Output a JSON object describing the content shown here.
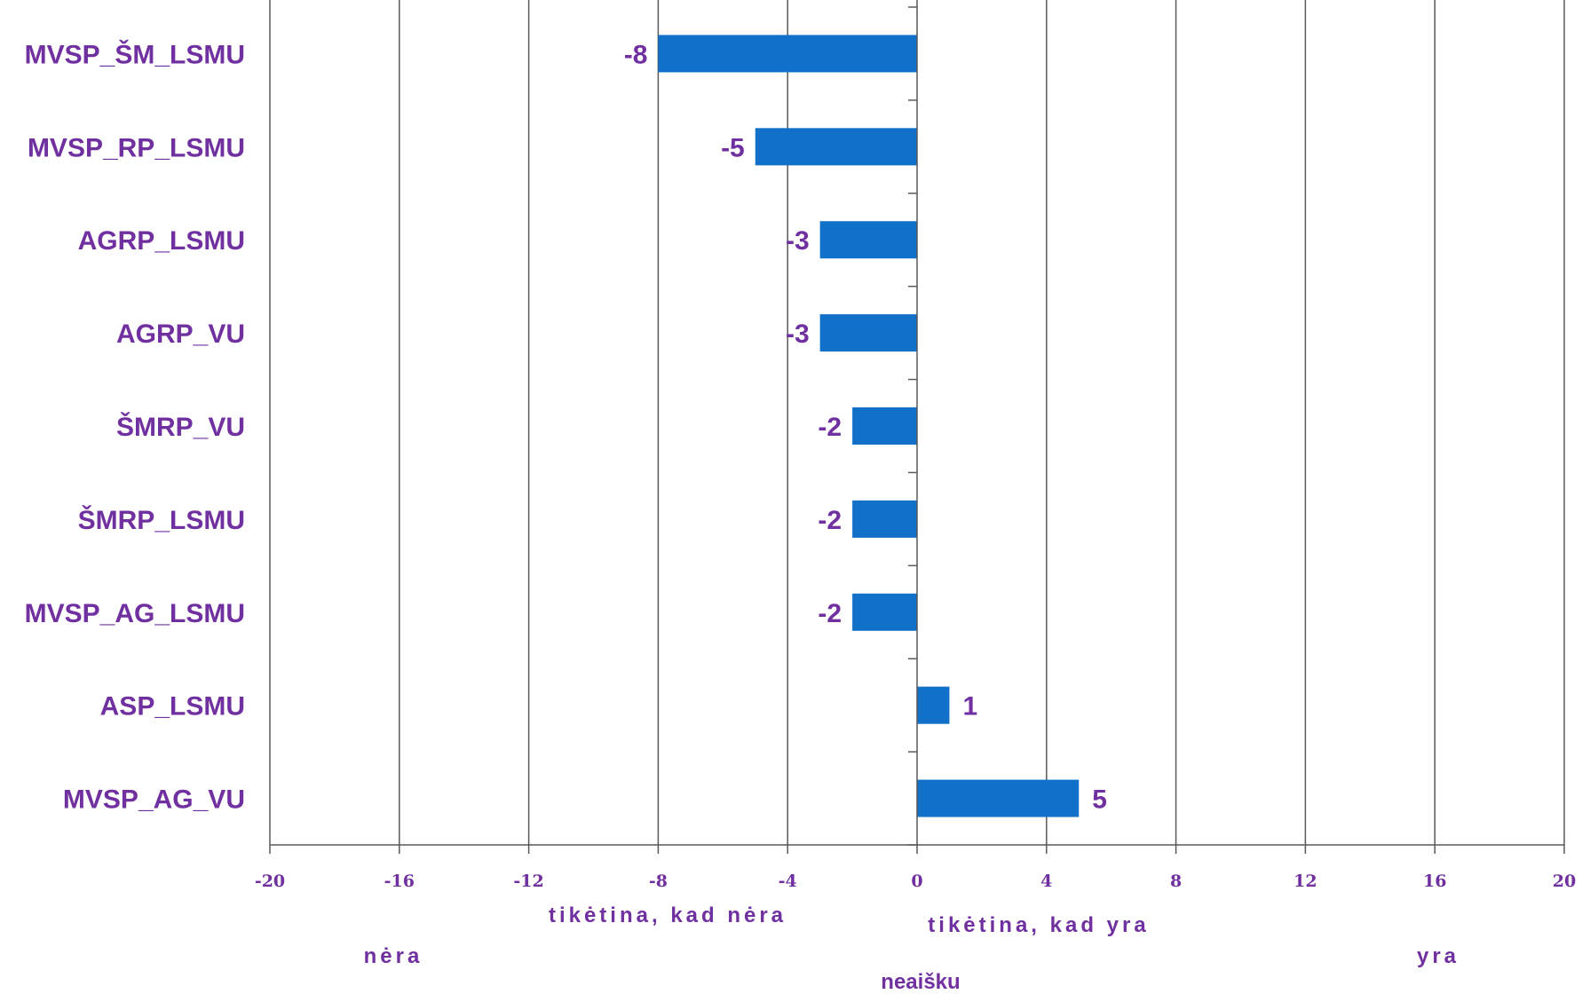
{
  "chart_data": {
    "type": "bar",
    "orientation": "horizontal",
    "categories": [
      "MVSP_ŠM_LSMU",
      "MVSP_RP_LSMU",
      "AGRP_LSMU",
      "AGRP_VU",
      "ŠMRP_VU",
      "ŠMRP_LSMU",
      "MVSP_AG_LSMU",
      "ASP_LSMU",
      "MVSP_AG_VU"
    ],
    "values": [
      -8,
      -5,
      -3,
      -3,
      -2,
      -2,
      -2,
      1,
      5
    ],
    "value_labels": [
      "-8",
      "-5",
      "-3",
      "-3",
      "-2",
      "-2",
      "-2",
      "1",
      "5"
    ],
    "xlim": [
      -20,
      20
    ],
    "x_ticks": [
      -20,
      -16,
      -12,
      -8,
      -4,
      0,
      4,
      8,
      12,
      16,
      20
    ],
    "x_tick_labels": [
      "-20",
      "-16",
      "-12",
      "-8",
      "-4",
      "0",
      "4",
      "8",
      "12",
      "16",
      "20"
    ],
    "grid": true,
    "legend": "none",
    "bar_color": "#1170C8",
    "text_color": "#7030A0",
    "axis_annotations": {
      "likely_not": "tikėtina, kad nėra",
      "likely_yes": "tikėtina, kad yra",
      "no": "nėra",
      "unclear": "neaišku",
      "yes": "yra"
    }
  }
}
